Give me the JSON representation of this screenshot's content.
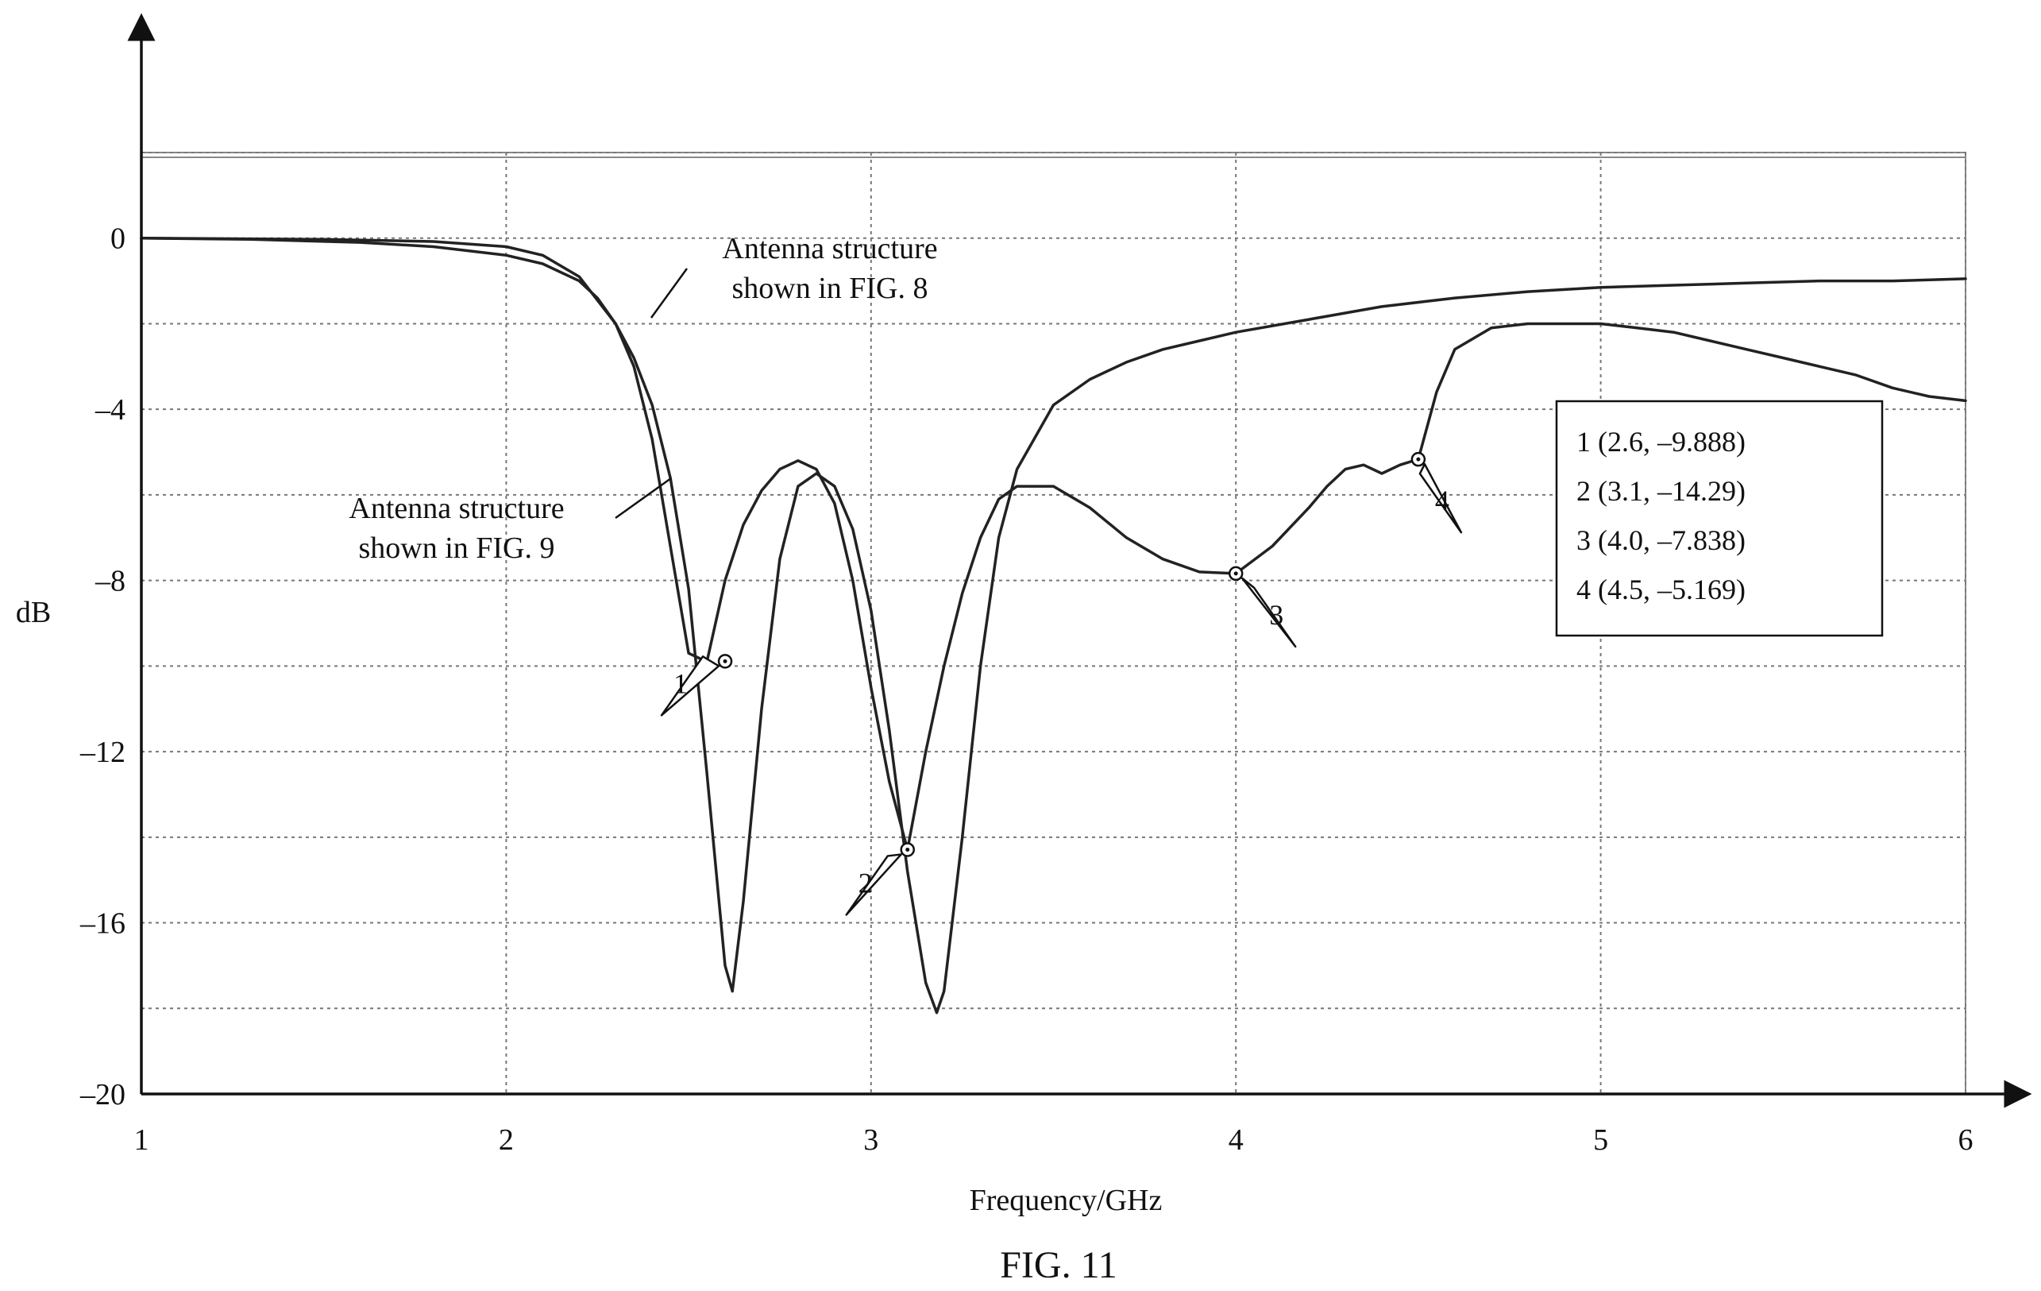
{
  "chart_data": {
    "type": "line",
    "caption": "FIG. 11",
    "xlabel": "Frequency/GHz",
    "ylabel": "dB",
    "xlim": [
      1,
      6
    ],
    "ylim": [
      -20,
      2
    ],
    "x_ticks": [
      1,
      2,
      3,
      4,
      5,
      6
    ],
    "x_tick_labels": [
      "1",
      "2",
      "3",
      "4",
      "5",
      "6"
    ],
    "y_ticks": [
      0,
      -4,
      -8,
      -12,
      -16,
      -20
    ],
    "y_tick_labels": [
      "0",
      "–4",
      "–8",
      "–12",
      "–16",
      "–20"
    ],
    "grid": true,
    "series": [
      {
        "id": "fig8",
        "annotation": [
          "Antenna structure",
          "shown in FIG. 8"
        ],
        "color": "#222222",
        "x": [
          1.0,
          1.5,
          1.8,
          2.0,
          2.1,
          2.2,
          2.3,
          2.35,
          2.4,
          2.45,
          2.5,
          2.55,
          2.6,
          2.65,
          2.7,
          2.75,
          2.8,
          2.85,
          2.9,
          2.95,
          3.0,
          3.05,
          3.1,
          3.15,
          3.2,
          3.25,
          3.3,
          3.35,
          3.4,
          3.5,
          3.6,
          3.7,
          3.8,
          3.9,
          4.0,
          4.1,
          4.2,
          4.25,
          4.3,
          4.35,
          4.4,
          4.45,
          4.5,
          4.55,
          4.6,
          4.7,
          4.8,
          4.9,
          5.0,
          5.1,
          5.2,
          5.3,
          5.4,
          5.5,
          5.6,
          5.7,
          5.8,
          5.9,
          6.0
        ],
        "y": [
          0,
          -0.03,
          -0.08,
          -0.2,
          -0.4,
          -0.9,
          -2.0,
          -3.0,
          -4.7,
          -7.2,
          -9.7,
          -9.9,
          -8.0,
          -6.7,
          -5.9,
          -5.4,
          -5.2,
          -5.4,
          -6.2,
          -8.0,
          -10.5,
          -12.7,
          -14.29,
          -12.0,
          -10.0,
          -8.3,
          -7.0,
          -6.1,
          -5.8,
          -5.8,
          -6.3,
          -7.0,
          -7.5,
          -7.8,
          -7.838,
          -7.2,
          -6.3,
          -5.8,
          -5.4,
          -5.3,
          -5.5,
          -5.3,
          -5.169,
          -3.6,
          -2.6,
          -2.1,
          -2.0,
          -2.0,
          -2.0,
          -2.1,
          -2.2,
          -2.4,
          -2.6,
          -2.8,
          -3.0,
          -3.2,
          -3.5,
          -3.7,
          -3.8
        ]
      },
      {
        "id": "fig9",
        "annotation": [
          "Antenna structure",
          "shown in FIG. 9"
        ],
        "color": "#222222",
        "x": [
          1.0,
          1.3,
          1.6,
          1.8,
          1.9,
          2.0,
          2.1,
          2.2,
          2.25,
          2.3,
          2.35,
          2.4,
          2.45,
          2.5,
          2.55,
          2.6,
          2.62,
          2.65,
          2.7,
          2.75,
          2.8,
          2.85,
          2.9,
          2.95,
          3.0,
          3.05,
          3.1,
          3.15,
          3.18,
          3.2,
          3.25,
          3.3,
          3.35,
          3.4,
          3.5,
          3.6,
          3.7,
          3.8,
          3.9,
          4.0,
          4.2,
          4.4,
          4.6,
          4.8,
          5.0,
          5.2,
          5.4,
          5.6,
          5.8,
          6.0
        ],
        "y": [
          0,
          -0.03,
          -0.1,
          -0.2,
          -0.3,
          -0.4,
          -0.6,
          -1.0,
          -1.4,
          -2.0,
          -2.8,
          -3.9,
          -5.6,
          -8.2,
          -12.5,
          -17.0,
          -17.6,
          -15.5,
          -11.0,
          -7.5,
          -5.8,
          -5.5,
          -5.8,
          -6.8,
          -8.7,
          -11.5,
          -14.8,
          -17.4,
          -18.1,
          -17.6,
          -14.0,
          -10.0,
          -7.0,
          -5.4,
          -3.9,
          -3.3,
          -2.9,
          -2.6,
          -2.4,
          -2.2,
          -1.9,
          -1.6,
          -1.4,
          -1.25,
          -1.15,
          -1.1,
          -1.05,
          -1.0,
          -1.0,
          -0.95
        ]
      }
    ],
    "markers": [
      {
        "label": "1",
        "x": 2.6,
        "y": -9.888
      },
      {
        "label": "2",
        "x": 3.1,
        "y": -14.29
      },
      {
        "label": "3",
        "x": 4.0,
        "y": -7.838
      },
      {
        "label": "4",
        "x": 4.5,
        "y": -5.169
      }
    ],
    "marker_legend": [
      "1 (2.6, –9.888)",
      "2 (3.1, –14.29)",
      "3 (4.0, –7.838)",
      "4 (4.5, –5.169)"
    ]
  }
}
